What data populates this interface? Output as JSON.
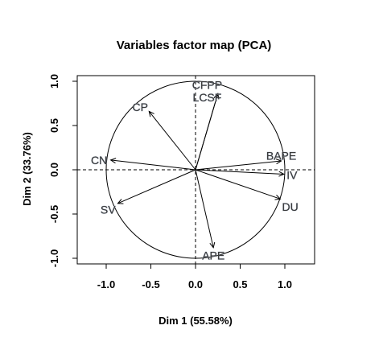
{
  "chart_data": {
    "type": "scatter",
    "title": "Variables factor map (PCA)",
    "xlabel": "Dim 1 (55.58%)",
    "ylabel": "Dim 2 (33.76%)",
    "xlim": [
      -1.3,
      1.3
    ],
    "ylim": [
      -1.1,
      1.05
    ],
    "x_ticks": [
      {
        "value": -1.0,
        "label": "-1.0"
      },
      {
        "value": -0.5,
        "label": "-0.5"
      },
      {
        "value": 0.0,
        "label": "0.0"
      },
      {
        "value": 0.5,
        "label": "0.5"
      },
      {
        "value": 1.0,
        "label": "1.0"
      }
    ],
    "y_ticks": [
      {
        "value": -1.0,
        "label": "-1.0"
      },
      {
        "value": -0.5,
        "label": "-0.5"
      },
      {
        "value": 0.0,
        "label": "0.0"
      },
      {
        "value": 0.5,
        "label": "0.5"
      },
      {
        "value": 1.0,
        "label": "1.0"
      }
    ],
    "grid": false,
    "correlation_circle": true,
    "reference_lines": [
      0,
      0
    ],
    "variables": [
      {
        "name": "CFPP",
        "x": 0.25,
        "y": 0.86
      },
      {
        "name": "LCSF",
        "x": 0.25,
        "y": 0.86
      },
      {
        "name": "CP",
        "x": -0.52,
        "y": 0.66
      },
      {
        "name": "CN",
        "x": -0.95,
        "y": 0.11
      },
      {
        "name": "SV",
        "x": -0.87,
        "y": -0.38
      },
      {
        "name": "APE",
        "x": 0.2,
        "y": -0.88
      },
      {
        "name": "DU",
        "x": 0.95,
        "y": -0.33
      },
      {
        "name": "BAPE",
        "x": 0.96,
        "y": 0.1
      },
      {
        "name": "IV",
        "x": 0.99,
        "y": -0.05
      }
    ],
    "labels": [
      {
        "name": "CFPP",
        "x": 0.13,
        "y": 0.96
      },
      {
        "name": "LCSF",
        "x": 0.13,
        "y": 0.82
      },
      {
        "name": "CP",
        "x": -0.62,
        "y": 0.71
      },
      {
        "name": "CN",
        "x": -1.08,
        "y": 0.11
      },
      {
        "name": "SV",
        "x": -0.98,
        "y": -0.45
      },
      {
        "name": "APE",
        "x": 0.2,
        "y": -0.97
      },
      {
        "name": "DU",
        "x": 1.06,
        "y": -0.42
      },
      {
        "name": "BAPE",
        "x": 0.96,
        "y": 0.16
      },
      {
        "name": "IV",
        "x": 1.08,
        "y": -0.06
      }
    ]
  }
}
